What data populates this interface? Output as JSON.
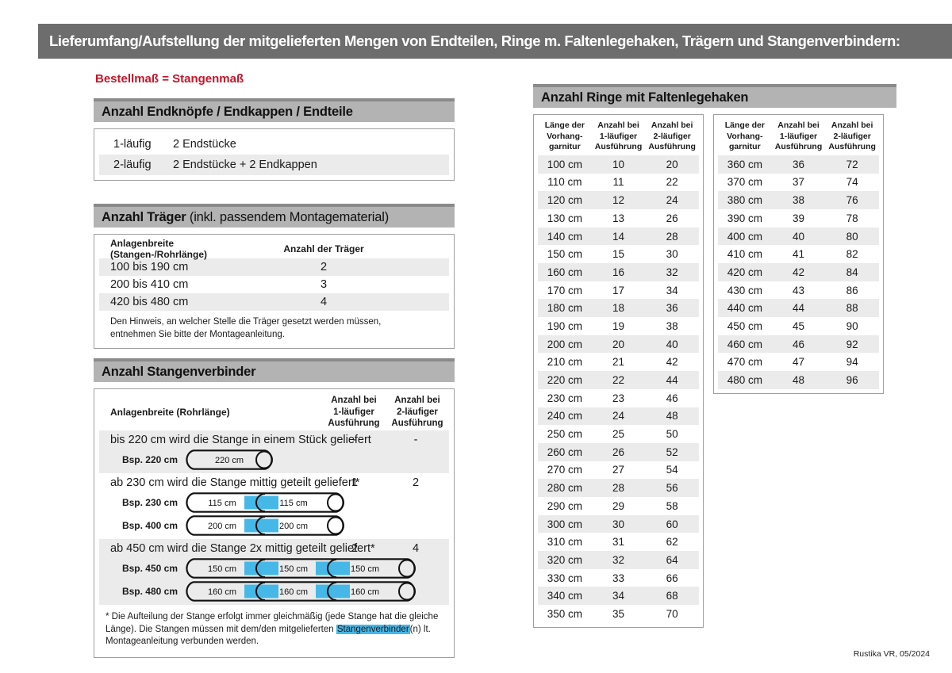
{
  "colors": {
    "bar_gray": "#6d6d6d",
    "section_gray": "#b3b3b3",
    "section_gray_dark": "#8a8a8a",
    "row_shade": "#ebebeb",
    "accent_red": "#c8142a",
    "connector_blue": "#45b8e8"
  },
  "header": {
    "title": "Lieferumfang/Aufstellung der mitgelieferten Mengen von Endteilen, Ringe m. Faltenlegehaken, Trägern und Stangenverbindern:"
  },
  "order_note": "Bestellmaß = Stangenmaß",
  "end_pieces": {
    "title": "Anzahl Endknöpfe / Endkappen / Endteile",
    "rows": [
      {
        "variant": "1-läufig",
        "parts": "2 Endstücke"
      },
      {
        "variant": "2-läufig",
        "parts": "2 Endstücke + 2 Endkappen"
      }
    ]
  },
  "traeger": {
    "title_bold": "Anzahl Träger",
    "title_rest": " (inkl. passendem Montagematerial)",
    "col_width": "Anlagenbreite (Stangen-/Rohrlänge)",
    "col_count": "Anzahl der Träger",
    "rows": [
      {
        "range": "100 bis 190 cm",
        "count": "2"
      },
      {
        "range": "200 bis 410 cm",
        "count": "3"
      },
      {
        "range": "420 bis 480 cm",
        "count": "4"
      }
    ],
    "note": "Den Hinweis, an welcher Stelle die Träger gesetzt werden müssen, entnehmen Sie bitte der Montageanleitung."
  },
  "verbinder": {
    "title": "Anzahl Stangenverbinder",
    "col_width": "Anlagenbreite (Rohrlänge)",
    "col_1run": "Anzahl bei\n1-läufiger\nAusführung",
    "col_2run": "Anzahl bei\n2-läufiger\nAusführung",
    "blocks": [
      {
        "text": "bis 220 cm wird die Stange in einem Stück geliefert",
        "count_1run": "-",
        "count_2run": "-",
        "rods": [
          {
            "label": "Bsp. 220 cm",
            "segments": [
              "220 cm"
            ]
          }
        ]
      },
      {
        "text": "ab 230 cm wird die Stange mittig geteilt geliefert*",
        "count_1run": "1",
        "count_2run": "2",
        "rods": [
          {
            "label": "Bsp. 230 cm",
            "segments": [
              "115 cm",
              "115 cm"
            ]
          },
          {
            "label": "Bsp. 400 cm",
            "segments": [
              "200 cm",
              "200 cm"
            ]
          }
        ]
      },
      {
        "text": "ab 450 cm wird die Stange 2x mittig geteilt geliefert*",
        "count_1run": "2",
        "count_2run": "4",
        "rods": [
          {
            "label": "Bsp. 450 cm",
            "segments": [
              "150 cm",
              "150 cm",
              "150 cm"
            ]
          },
          {
            "label": "Bsp. 480 cm",
            "segments": [
              "160 cm",
              "160 cm",
              "160 cm"
            ]
          }
        ]
      }
    ],
    "footnote": {
      "pre": "* Die Aufteilung der Stange erfolgt immer gleichmäßig (jede Stange hat die gleiche Länge). Die Stangen müssen mit dem/den mitgelieferten ",
      "highlight": "Stangenverbinder",
      "post": "(n) lt. Montageanleitung verbunden werden."
    }
  },
  "ringe": {
    "title": "Anzahl Ringe mit Faltenlegehaken",
    "col_length": "Länge der\nVorhang-\ngarnitur",
    "col_1run": "Anzahl bei\n1-läufiger\nAusführung",
    "col_2run": "Anzahl bei\n2-läufiger\nAusführung",
    "table_left": [
      [
        "100 cm",
        "10",
        "20"
      ],
      [
        "110 cm",
        "11",
        "22"
      ],
      [
        "120 cm",
        "12",
        "24"
      ],
      [
        "130 cm",
        "13",
        "26"
      ],
      [
        "140 cm",
        "14",
        "28"
      ],
      [
        "150 cm",
        "15",
        "30"
      ],
      [
        "160 cm",
        "16",
        "32"
      ],
      [
        "170 cm",
        "17",
        "34"
      ],
      [
        "180 cm",
        "18",
        "36"
      ],
      [
        "190 cm",
        "19",
        "38"
      ],
      [
        "200 cm",
        "20",
        "40"
      ],
      [
        "210 cm",
        "21",
        "42"
      ],
      [
        "220 cm",
        "22",
        "44"
      ],
      [
        "230 cm",
        "23",
        "46"
      ],
      [
        "240 cm",
        "24",
        "48"
      ],
      [
        "250 cm",
        "25",
        "50"
      ],
      [
        "260 cm",
        "26",
        "52"
      ],
      [
        "270 cm",
        "27",
        "54"
      ],
      [
        "280 cm",
        "28",
        "56"
      ],
      [
        "290 cm",
        "29",
        "58"
      ],
      [
        "300 cm",
        "30",
        "60"
      ],
      [
        "310 cm",
        "31",
        "62"
      ],
      [
        "320 cm",
        "32",
        "64"
      ],
      [
        "330 cm",
        "33",
        "66"
      ],
      [
        "340 cm",
        "34",
        "68"
      ],
      [
        "350 cm",
        "35",
        "70"
      ]
    ],
    "table_right": [
      [
        "360 cm",
        "36",
        "72"
      ],
      [
        "370 cm",
        "37",
        "74"
      ],
      [
        "380 cm",
        "38",
        "76"
      ],
      [
        "390 cm",
        "39",
        "78"
      ],
      [
        "400 cm",
        "40",
        "80"
      ],
      [
        "410 cm",
        "41",
        "82"
      ],
      [
        "420 cm",
        "42",
        "84"
      ],
      [
        "430 cm",
        "43",
        "86"
      ],
      [
        "440 cm",
        "44",
        "88"
      ],
      [
        "450 cm",
        "45",
        "90"
      ],
      [
        "460 cm",
        "46",
        "92"
      ],
      [
        "470 cm",
        "47",
        "94"
      ],
      [
        "480 cm",
        "48",
        "96"
      ]
    ]
  },
  "footer": "Rustika VR, 05/2024"
}
